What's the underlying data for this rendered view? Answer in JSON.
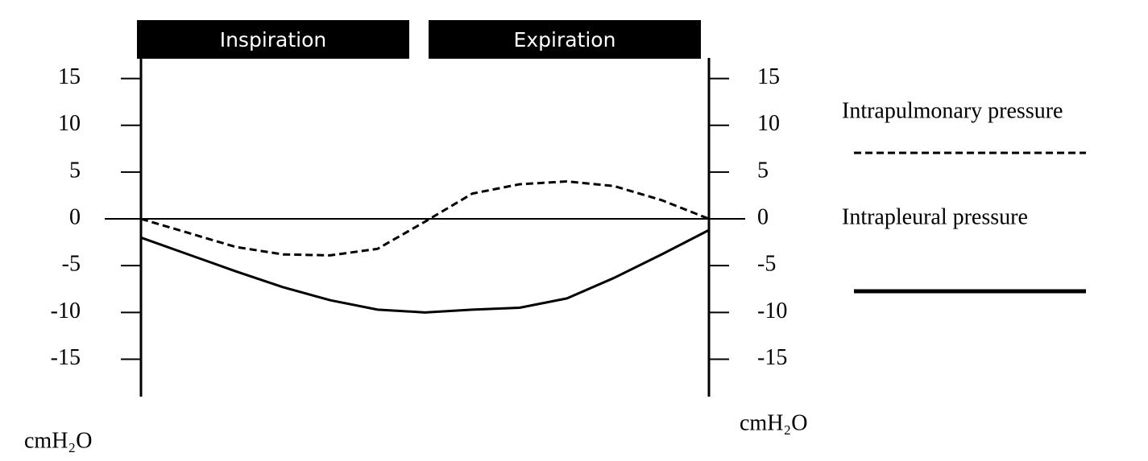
{
  "chart_data": {
    "type": "line",
    "phases": [
      "Inspiration",
      "Expiration"
    ],
    "y_label": "cmH₂O",
    "y2_label": "cmH₂O",
    "categories": [
      null,
      null,
      null,
      null,
      null,
      null,
      null,
      null,
      null,
      null,
      null,
      null,
      null
    ],
    "series": [
      {
        "name": "Intrapulmonary pressure",
        "color": "#000000",
        "dash": true,
        "values": [
          0,
          -1.5,
          -3,
          -3.8,
          -3.9,
          -3.2,
          -0.3,
          2.7,
          3.7,
          4,
          3.5,
          2,
          0
        ]
      },
      {
        "name": "Intrapleural pressure",
        "color": "#000000",
        "dash": false,
        "values": [
          -2,
          -3.8,
          -5.6,
          -7.3,
          -8.7,
          -9.7,
          -10,
          -9.7,
          -9.5,
          -8.5,
          -6.3,
          -3.8,
          -1.2
        ]
      }
    ],
    "ylim": [
      -19,
      17.2
    ],
    "yticks": [
      15,
      10,
      5,
      0,
      -5,
      -10,
      -15
    ],
    "y2lim": [
      -19,
      17.2
    ],
    "y2ticks": [
      15,
      10,
      5,
      0,
      -5,
      -10,
      -15
    ],
    "grid": false
  }
}
